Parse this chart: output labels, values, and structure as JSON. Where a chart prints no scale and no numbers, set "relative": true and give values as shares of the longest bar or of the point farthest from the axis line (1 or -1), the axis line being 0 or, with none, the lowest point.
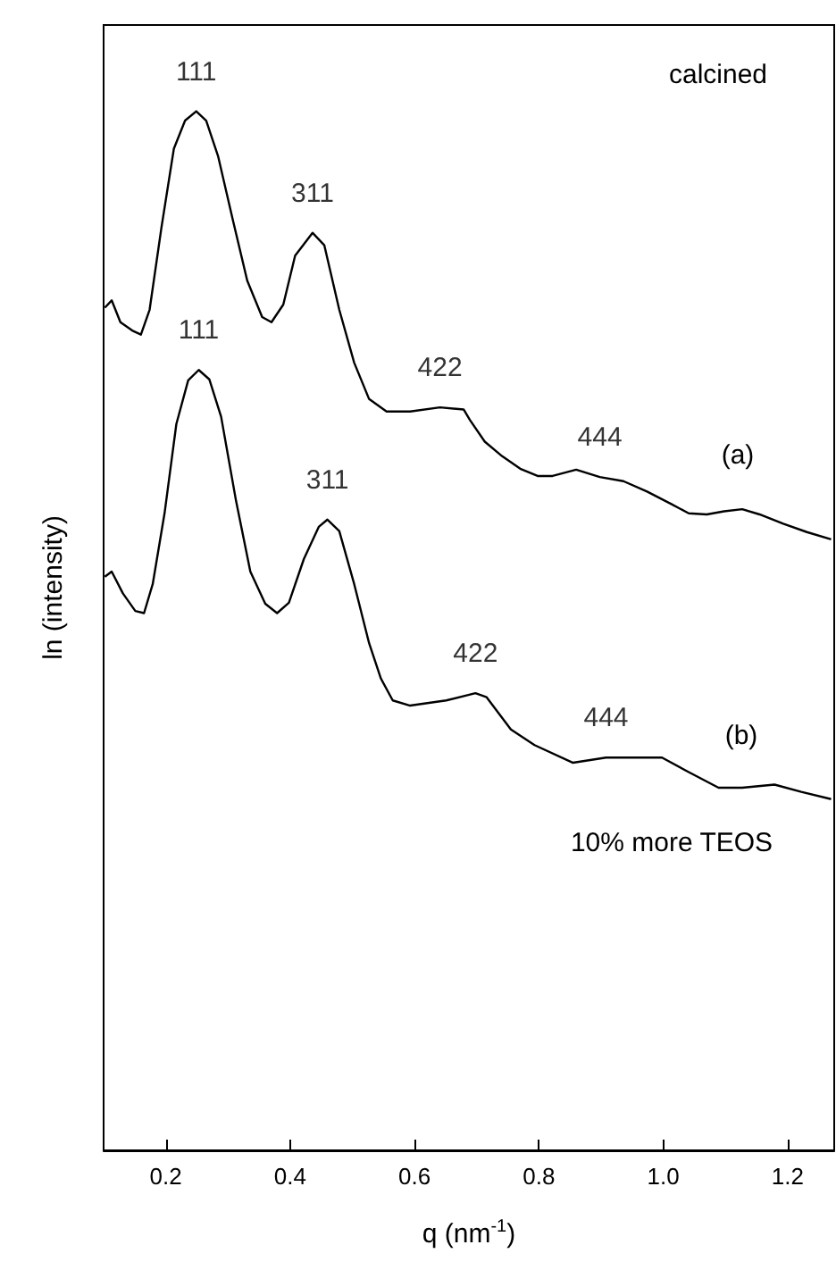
{
  "chart_data": {
    "type": "line",
    "relative": true,
    "xlabel": "q (nm$^{-1}$)",
    "ylabel": "ln (intensity)",
    "xlim": [
      0.1,
      1.275
    ],
    "xticks": [
      0.2,
      0.4,
      0.6,
      0.8,
      {
        "value": 1.0,
        "label": "1.0"
      },
      1.2
    ],
    "tick_labels": "x",
    "marker": "none",
    "series": [
      {
        "color": "#000000",
        "x": [
          0.102,
          0.113,
          0.127,
          0.146,
          0.16,
          0.174,
          0.193,
          0.213,
          0.231,
          0.249,
          0.265,
          0.284,
          0.308,
          0.331,
          0.355,
          0.37,
          0.389,
          0.408,
          0.436,
          0.455,
          0.479,
          0.503,
          0.527,
          0.555,
          0.593,
          0.641,
          0.679,
          0.689,
          0.713,
          0.741,
          0.77,
          0.798,
          0.822,
          0.86,
          0.898,
          0.936,
          0.974,
          1.013,
          1.041,
          1.07,
          1.098,
          1.127,
          1.155,
          1.193,
          1.231,
          1.27
        ],
        "values": [
          0.811,
          0.818,
          0.797,
          0.789,
          0.785,
          0.809,
          0.888,
          0.964,
          0.991,
          1.0,
          0.991,
          0.957,
          0.895,
          0.837,
          0.802,
          0.797,
          0.814,
          0.861,
          0.883,
          0.871,
          0.809,
          0.758,
          0.723,
          0.711,
          0.711,
          0.715,
          0.713,
          0.703,
          0.682,
          0.668,
          0.656,
          0.649,
          0.649,
          0.655,
          0.648,
          0.644,
          0.634,
          0.622,
          0.613,
          0.612,
          0.615,
          0.617,
          0.612,
          0.603,
          0.595,
          0.588
        ]
      },
      {
        "color": "#000000",
        "x": [
          0.102,
          0.113,
          0.131,
          0.151,
          0.165,
          0.179,
          0.198,
          0.217,
          0.236,
          0.253,
          0.27,
          0.289,
          0.313,
          0.336,
          0.36,
          0.379,
          0.398,
          0.422,
          0.446,
          0.46,
          0.479,
          0.503,
          0.527,
          0.546,
          0.565,
          0.593,
          0.651,
          0.698,
          0.716,
          0.755,
          0.793,
          0.855,
          0.908,
          0.998,
          1.041,
          1.089,
          1.127,
          1.179,
          1.222,
          1.27
        ],
        "values": [
          0.552,
          0.557,
          0.536,
          0.519,
          0.517,
          0.545,
          0.613,
          0.699,
          0.741,
          0.751,
          0.742,
          0.706,
          0.625,
          0.557,
          0.526,
          0.517,
          0.527,
          0.569,
          0.6,
          0.607,
          0.596,
          0.545,
          0.488,
          0.454,
          0.433,
          0.428,
          0.433,
          0.44,
          0.436,
          0.405,
          0.39,
          0.373,
          0.378,
          0.378,
          0.364,
          0.349,
          0.349,
          0.352,
          0.345,
          0.338
        ]
      }
    ],
    "annotations": [
      {
        "text": "111",
        "x": 0.249,
        "y": 1.0
      },
      {
        "text": "311",
        "x": 0.436,
        "y": 0.883
      },
      {
        "text": "422",
        "x": 0.641,
        "y": 0.715
      },
      {
        "text": "444",
        "x": 0.898,
        "y": 0.648
      },
      "(a)",
      "calcined",
      {
        "text": "111",
        "x": 0.253,
        "y": 0.751
      },
      {
        "text": "311",
        "x": 0.46,
        "y": 0.607
      },
      {
        "text": "422",
        "x": 0.698,
        "y": 0.44
      },
      {
        "text": "444",
        "x": 0.908,
        "y": 0.378
      },
      "(b)",
      "10% more TEOS"
    ]
  }
}
